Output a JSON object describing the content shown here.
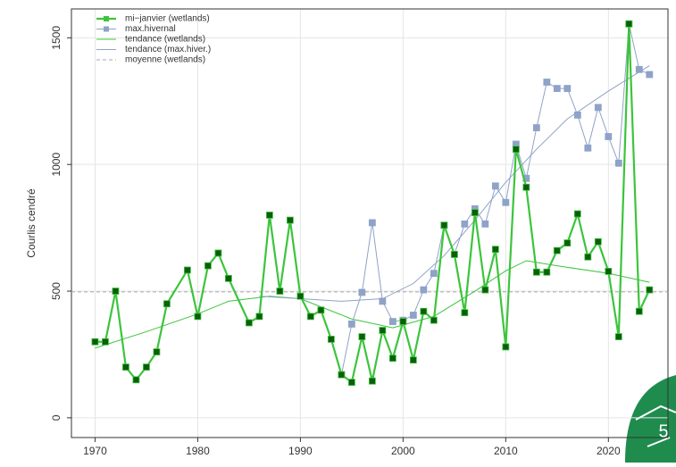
{
  "chart_data": {
    "type": "line",
    "ylabel": "Courlis cendré",
    "xlim": [
      1967.7,
      2025.8
    ],
    "ylim": [
      -78,
      1614
    ],
    "xticks": [
      1970,
      1980,
      1990,
      2000,
      2010,
      2020
    ],
    "yticks": [
      0,
      500,
      1000,
      1500
    ],
    "grid": true,
    "legend": "top-left",
    "series": [
      {
        "name": "mi−janvier (wetlands)",
        "color": "#3cc43c",
        "marker_color": "#0b5e0b",
        "marker": true,
        "width": 2.2,
        "x": [
          1970,
          1971,
          1972,
          1973,
          1974,
          1975,
          1976,
          1977,
          1979,
          1980,
          1981,
          1982,
          1983,
          1985,
          1986,
          1987,
          1988,
          1989,
          1990,
          1991,
          1992,
          1993,
          1994,
          1995,
          1996,
          1997,
          1998,
          1999,
          2000,
          2001,
          2002,
          2003,
          2004,
          2005,
          2006,
          2007,
          2008,
          2009,
          2010,
          2011,
          2012,
          2013,
          2014,
          2015,
          2016,
          2017,
          2018,
          2019,
          2020,
          2021,
          2022,
          2023,
          2024
        ],
        "values": [
          300,
          300,
          500,
          200,
          150,
          200,
          260,
          450,
          583,
          400,
          600,
          650,
          550,
          375,
          400,
          800,
          500,
          780,
          480,
          400,
          425,
          310,
          170,
          140,
          320,
          145,
          345,
          235,
          380,
          228,
          420,
          385,
          760,
          645,
          415,
          810,
          505,
          665,
          280,
          1060,
          910,
          575,
          575,
          660,
          690,
          805,
          635,
          695,
          578,
          320,
          1555,
          420,
          505
        ]
      },
      {
        "name": "max.hivernal",
        "color": "#8fa2c8",
        "marker_color": "#8fa2c8",
        "marker": true,
        "width": 1,
        "x": [
          1994,
          1995,
          1996,
          1997,
          1998,
          1999,
          2000,
          2001,
          2002,
          2003,
          2004,
          2005,
          2006,
          2007,
          2008,
          2009,
          2010,
          2011,
          2012,
          2013,
          2014,
          2015,
          2016,
          2017,
          2018,
          2019,
          2020,
          2021,
          2022,
          2023,
          2024
        ],
        "values": [
          170,
          370,
          495,
          770,
          460,
          380,
          385,
          405,
          505,
          570,
          760,
          645,
          765,
          825,
          765,
          915,
          850,
          1080,
          945,
          1145,
          1325,
          1300,
          1300,
          1195,
          1065,
          1225,
          1110,
          1005,
          1555,
          1375,
          1355
        ]
      },
      {
        "name": "tendance (wetlands)",
        "color": "#3cc43c",
        "marker": false,
        "width": 1,
        "x": [
          1970,
          1975,
          1980,
          1983,
          1987,
          1990,
          1995,
          1999,
          2003,
          2007,
          2010,
          2012,
          2015,
          2020,
          2024
        ],
        "values": [
          275,
          340,
          410,
          460,
          480,
          470,
          390,
          355,
          400,
          500,
          580,
          620,
          600,
          570,
          535
        ]
      },
      {
        "name": "tendance (max.hiver.)",
        "color": "#8fa2c8",
        "marker": false,
        "width": 1,
        "x": [
          1986,
          1990,
          1994,
          1998,
          2001,
          2004,
          2007,
          2010,
          2013,
          2016,
          2020,
          2024
        ],
        "values": [
          480,
          470,
          460,
          470,
          530,
          640,
          780,
          930,
          1060,
          1180,
          1290,
          1390
        ]
      }
    ],
    "hline": {
      "name": "moyenne (wetlands)",
      "value": 497,
      "color": "#aaaaaa"
    },
    "badge": "5"
  }
}
